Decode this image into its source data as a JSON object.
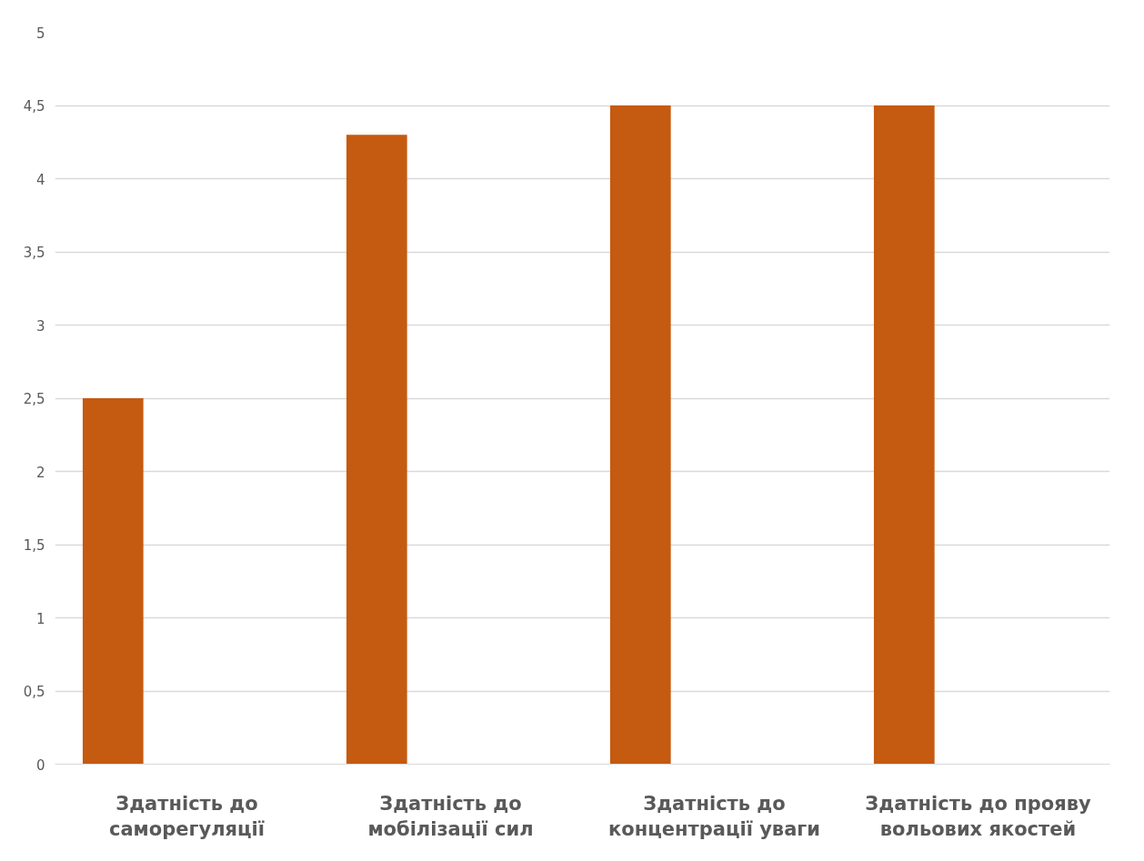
{
  "chart_data": {
    "type": "bar",
    "categories": [
      "Здатність до саморегуляції",
      "Здатність до мобілізації сил",
      "Здатність до концентрації уваги",
      "Здатність до прояву вольових якостей"
    ],
    "values": [
      2.5,
      4.3,
      4.5,
      4.5
    ],
    "color": "#c55a11",
    "ylim": [
      0,
      5
    ],
    "yticks": [
      0,
      {
        "value": 0.5,
        "label": "0,5"
      },
      1,
      {
        "value": 1.5,
        "label": "1,5"
      },
      2,
      {
        "value": 2.5,
        "label": "2,5"
      },
      3,
      {
        "value": 3.5,
        "label": "3,5"
      },
      4,
      {
        "value": 4.5,
        "label": "4,5"
      },
      5
    ],
    "grid": "y"
  }
}
